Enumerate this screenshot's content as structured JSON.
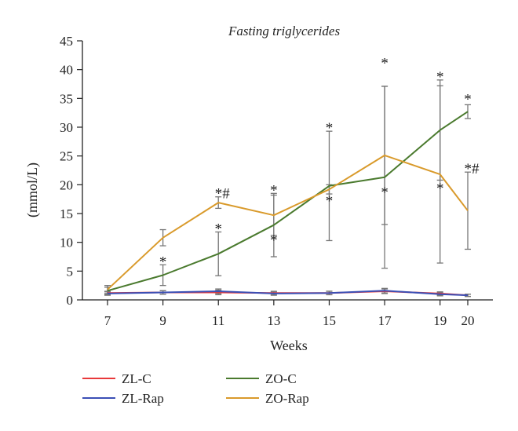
{
  "chart_data": {
    "type": "line",
    "title": "Fasting triglycerides",
    "xlabel": "Weeks",
    "ylabel": "(mmol/L)",
    "x": [
      7,
      9,
      11,
      13,
      15,
      17,
      19,
      20
    ],
    "xticks": [
      "7",
      "9",
      "11",
      "13",
      "15",
      "17",
      "19",
      "20"
    ],
    "ylim": [
      0,
      45
    ],
    "yticks": [
      "0",
      "5",
      "10",
      "15",
      "20",
      "25",
      "30",
      "35",
      "40",
      "45"
    ],
    "grid": false,
    "legend_position": "bottom",
    "series": [
      {
        "name": "ZL-C",
        "color": "#e8393a",
        "values": [
          1.2,
          1.3,
          1.3,
          1.2,
          1.2,
          1.5,
          1.1,
          0.8
        ],
        "error": [
          0.3,
          0.3,
          0.4,
          0.3,
          0.3,
          0.4,
          0.3,
          0.2
        ]
      },
      {
        "name": "ZL-Rap",
        "color": "#3b4fb5",
        "values": [
          1.1,
          1.3,
          1.5,
          1.1,
          1.2,
          1.6,
          1.0,
          0.8
        ],
        "error": [
          0.3,
          0.3,
          0.4,
          0.3,
          0.3,
          0.4,
          0.3,
          0.2
        ]
      },
      {
        "name": "ZO-C",
        "color": "#4a7a2e",
        "values": [
          1.6,
          4.3,
          8.0,
          13.0,
          19.8,
          21.3,
          29.5,
          32.7
        ],
        "error": [
          0.6,
          1.8,
          3.8,
          5.5,
          9.5,
          15.8,
          8.7,
          1.2
        ]
      },
      {
        "name": "ZO-Rap",
        "color": "#d99a2b",
        "values": [
          1.8,
          10.8,
          16.9,
          14.7,
          19.2,
          25.1,
          21.8,
          15.5
        ],
        "error": [
          0.7,
          1.4,
          1.0,
          3.5,
          0.8,
          12.0,
          15.4,
          6.7
        ]
      }
    ],
    "annotations": [
      {
        "x": 9,
        "y": 6.1,
        "text": "*",
        "place": "above"
      },
      {
        "x": 11,
        "y": 17.9,
        "text": "*#",
        "place": "above"
      },
      {
        "x": 11,
        "y": 11.8,
        "text": "*",
        "place": "above"
      },
      {
        "x": 13,
        "y": 18.5,
        "text": "*",
        "place": "above"
      },
      {
        "x": 13,
        "y": 12.0,
        "text": "*",
        "place": "below"
      },
      {
        "x": 15,
        "y": 29.3,
        "text": "*",
        "place": "above"
      },
      {
        "x": 15,
        "y": 18.8,
        "text": "*",
        "place": "below"
      },
      {
        "x": 17,
        "y": 40.6,
        "text": "*",
        "place": "above"
      },
      {
        "x": 17,
        "y": 20.3,
        "text": "*",
        "place": "below"
      },
      {
        "x": 19,
        "y": 38.2,
        "text": "*",
        "place": "above"
      },
      {
        "x": 19,
        "y": 21.0,
        "text": "*",
        "place": "below"
      },
      {
        "x": 20,
        "y": 34.3,
        "text": "*",
        "place": "above"
      },
      {
        "x": 20,
        "y": 22.2,
        "text": "*#",
        "place": "above"
      }
    ]
  }
}
